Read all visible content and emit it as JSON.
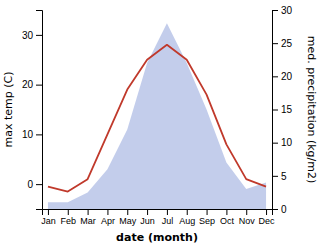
{
  "chart_data": {
    "type": "line",
    "categories": [
      "Jan",
      "Feb",
      "Mar",
      "Apr",
      "May",
      "Jun",
      "Jul",
      "Aug",
      "Sep",
      "Oct",
      "Nov",
      "Dec"
    ],
    "xlabel": "date (month)",
    "ylabel": "max temp (C)",
    "y2label": "med. precipitation (kg/m2)",
    "series": [
      {
        "type": "area",
        "color": "#b8c4e8",
        "axis": "y2",
        "values": [
          1,
          1,
          2.5,
          6,
          12,
          22,
          28,
          22,
          15,
          7,
          3,
          4
        ]
      },
      {
        "type": "line",
        "color": "#c0392b",
        "values": [
          -0.5,
          -1.5,
          1,
          10,
          19,
          25,
          28,
          25,
          18,
          8,
          1,
          -0.5
        ]
      }
    ],
    "ylim": [
      -5,
      35
    ],
    "yticks": [
      0,
      10,
      20,
      30
    ],
    "y2lim": [
      0,
      30
    ],
    "y2ticks": [
      0,
      5,
      10,
      15,
      20,
      25,
      30
    ],
    "grid": false
  }
}
